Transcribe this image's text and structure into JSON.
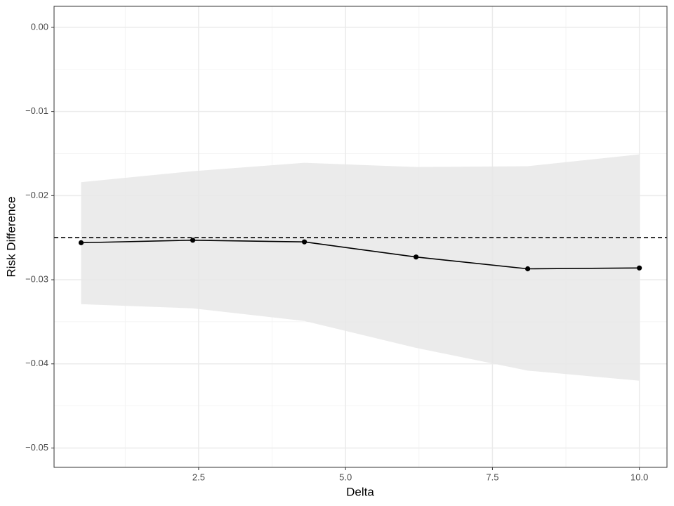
{
  "chart_data": {
    "type": "line",
    "x_label": "Delta",
    "y_label": "Risk Difference",
    "x": [
      0.5,
      2.4,
      4.3,
      6.2,
      8.1,
      10.0
    ],
    "values": [
      -0.0256,
      -0.0253,
      -0.0255,
      -0.0273,
      -0.0287,
      -0.0286
    ],
    "lower": [
      -0.0329,
      -0.0334,
      -0.0349,
      -0.0381,
      -0.0408,
      -0.042
    ],
    "upper": [
      -0.0184,
      -0.0171,
      -0.0161,
      -0.0166,
      -0.0165,
      -0.0151
    ],
    "hline": -0.025,
    "color": "#000000",
    "ribbon_color": "#e8e8e8",
    "xlim": [
      0.04,
      10.47
    ],
    "ylim": [
      -0.0523,
      0.0025
    ],
    "xticks": [
      2.5,
      {
        "value": 5,
        "label": "5.0"
      },
      7.5,
      {
        "value": 10,
        "label": "10.0"
      }
    ],
    "yticks": [
      {
        "value": 0,
        "label": "0.00"
      },
      {
        "value": -0.01,
        "label": "−0.01"
      },
      {
        "value": -0.02,
        "label": "−0.02"
      },
      {
        "value": -0.03,
        "label": "−0.03"
      },
      {
        "value": -0.04,
        "label": "−0.04"
      },
      {
        "value": -0.05,
        "label": "−0.05"
      }
    ],
    "xticks_minor": [
      1.25,
      3.75,
      6.25,
      8.75
    ],
    "yticks_minor": [
      -0.005,
      -0.015,
      -0.025,
      -0.035,
      -0.045
    ],
    "grid": true
  }
}
